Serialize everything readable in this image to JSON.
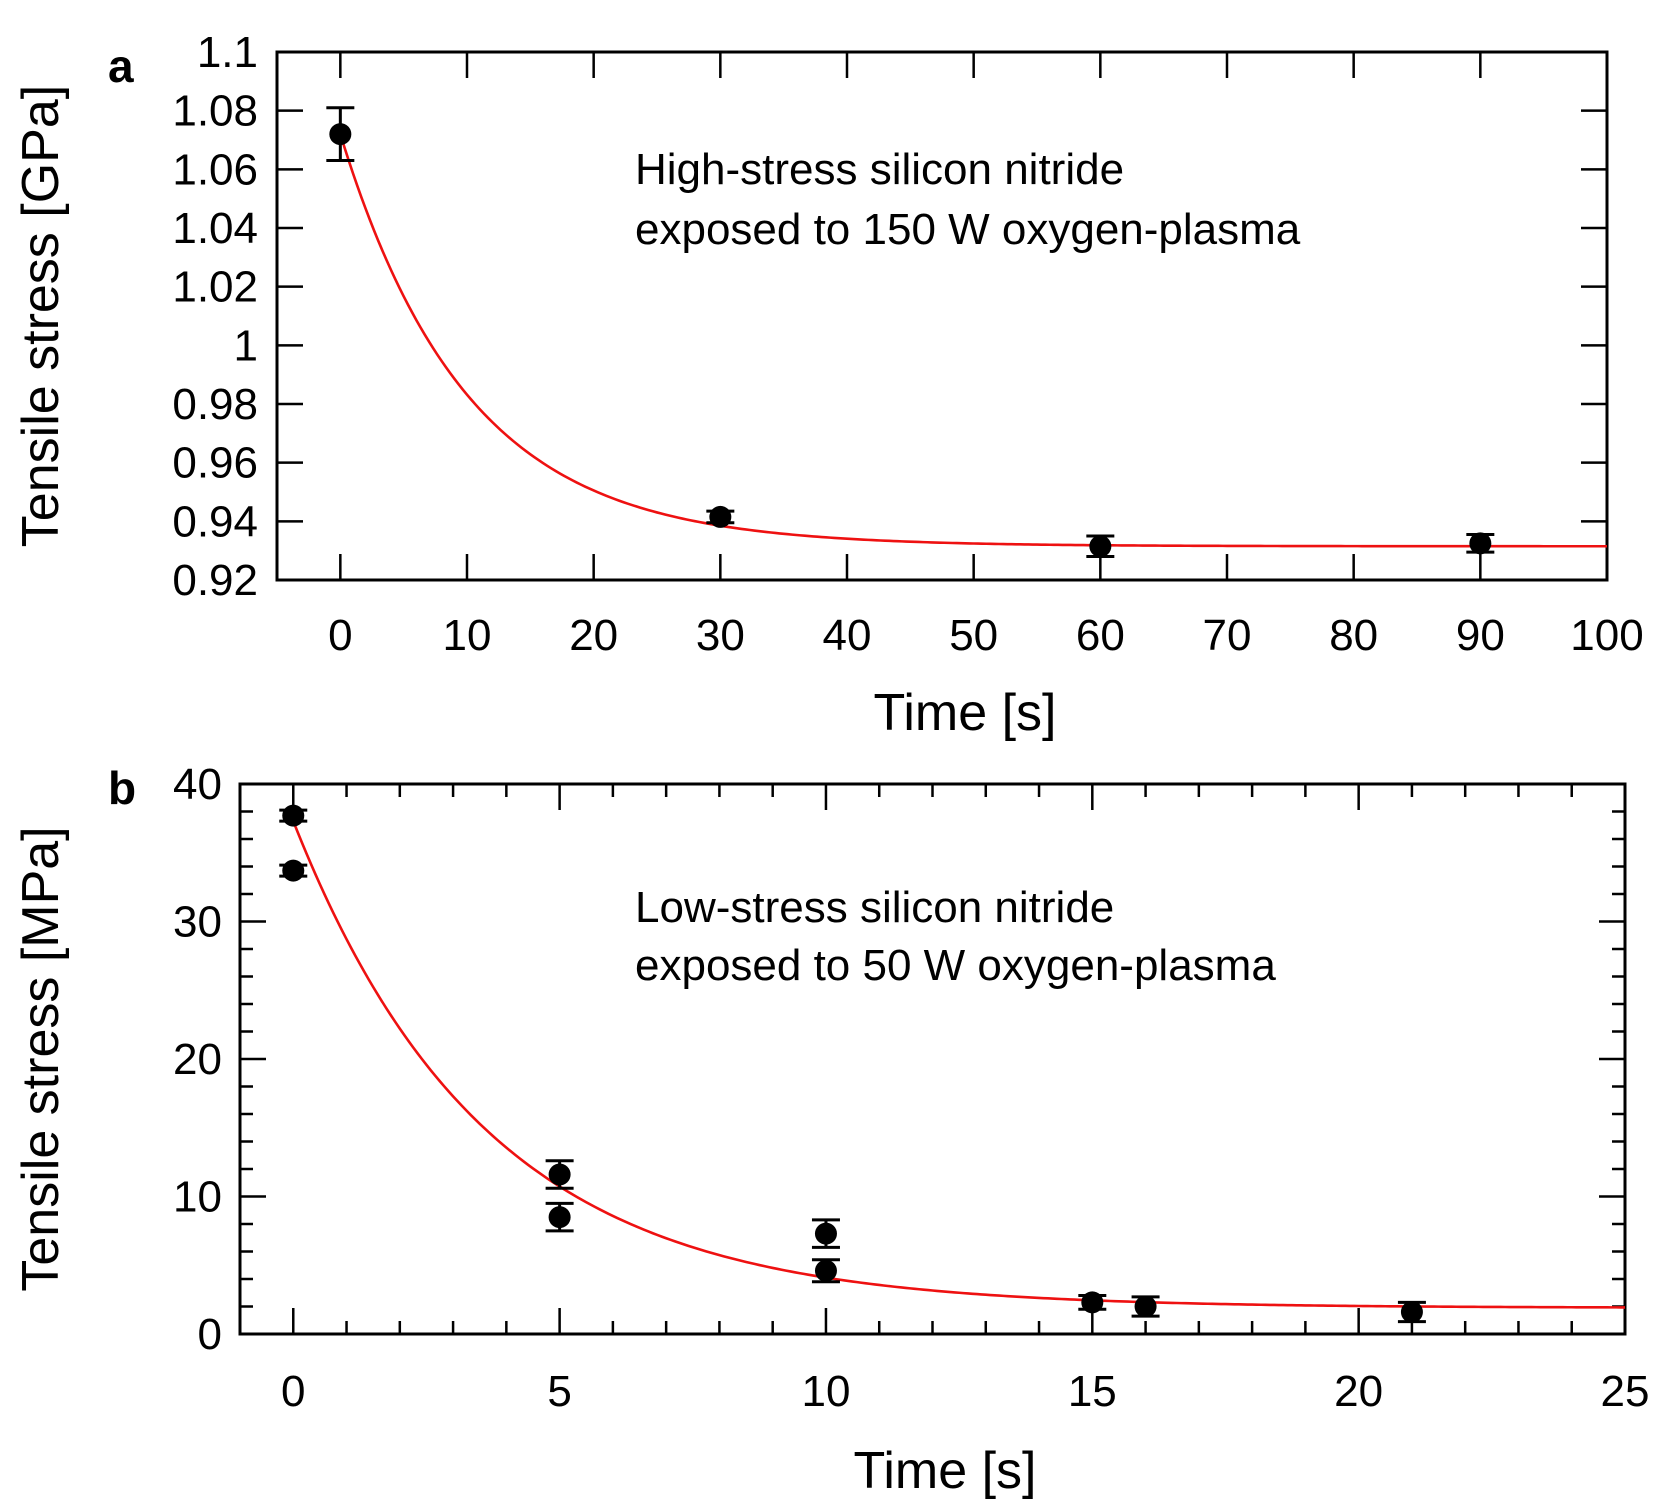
{
  "colors": {
    "fit": "#ee1111",
    "points": "#000000"
  },
  "chart_data": [
    {
      "type": "scatter",
      "panel_label": "a",
      "xlabel": "Time [s]",
      "ylabel": "Tensile stress [GPa]",
      "xlim": [
        -5,
        100
      ],
      "ylim": [
        0.92,
        1.1
      ],
      "x_ticks": [
        "0",
        "10",
        "20",
        "30",
        "40",
        "50",
        "60",
        "70",
        "80",
        "90",
        "100"
      ],
      "y_ticks": [
        "0.92",
        "0.94",
        "0.96",
        "0.98",
        "1",
        "1.02",
        "1.04",
        "1.06",
        "1.08",
        "1.1"
      ],
      "annotation": [
        "High-stress silicon nitride",
        "exposed to 150 W oxygen-plasma"
      ],
      "points": [
        {
          "x": 0,
          "y": 1.072,
          "err": 0.009
        },
        {
          "x": 30,
          "y": 0.9415,
          "err": 0.002
        },
        {
          "x": 60,
          "y": 0.9315,
          "err": 0.0035
        },
        {
          "x": 90,
          "y": 0.9325,
          "err": 0.003
        }
      ],
      "fit": {
        "model": "exponential_decay",
        "y_inf": 0.9315,
        "amplitude": 0.1405,
        "tau": 10,
        "x_range": [
          0,
          100
        ]
      }
    },
    {
      "type": "scatter",
      "panel_label": "b",
      "xlabel": "Time [s]",
      "ylabel": "Tensile stress [MPa]",
      "xlim": [
        -1,
        25
      ],
      "ylim": [
        0,
        40
      ],
      "x_ticks": [
        "0",
        "5",
        "10",
        "15",
        "20",
        "25"
      ],
      "y_ticks": [
        "0",
        "10",
        "20",
        "30",
        "40"
      ],
      "annotation": [
        "Low-stress silicon nitride",
        "exposed to 50 W oxygen-plasma"
      ],
      "points": [
        {
          "x": 0,
          "y": 37.7,
          "err": 0.4
        },
        {
          "x": 0,
          "y": 33.7,
          "err": 0.4
        },
        {
          "x": 5,
          "y": 11.6,
          "err": 1.0
        },
        {
          "x": 5,
          "y": 8.5,
          "err": 1.0
        },
        {
          "x": 10,
          "y": 7.3,
          "err": 1.0
        },
        {
          "x": 10,
          "y": 4.6,
          "err": 0.8
        },
        {
          "x": 15,
          "y": 2.3,
          "err": 0.5
        },
        {
          "x": 16,
          "y": 2.0,
          "err": 0.7
        },
        {
          "x": 21,
          "y": 1.6,
          "err": 0.7
        }
      ],
      "fit": {
        "model": "exponential_decay",
        "y_inf": 1.9,
        "amplitude": 35.4,
        "tau": 3.6,
        "x_range": [
          0,
          25
        ]
      }
    }
  ]
}
